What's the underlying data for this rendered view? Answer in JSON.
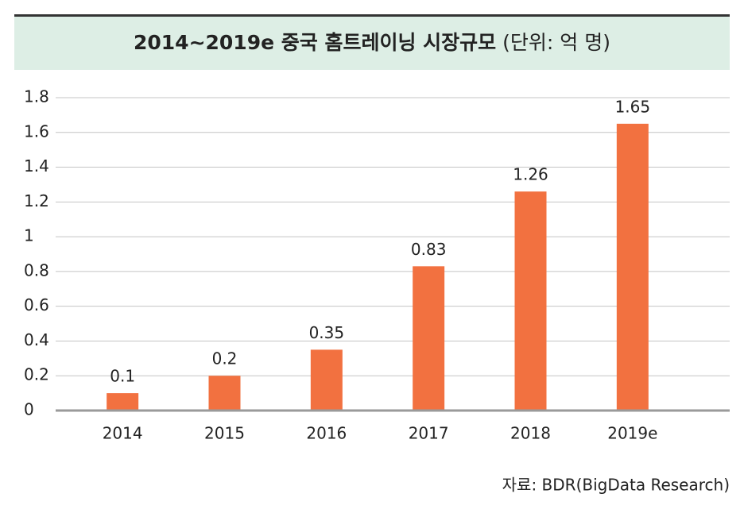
{
  "chart_data": {
    "type": "bar",
    "title": "2014~2019e 중국 홈트레이닝 시장규모",
    "subtitle": "(단위: 억 명)",
    "categories": [
      "2014",
      "2015",
      "2016",
      "2017",
      "2018",
      "2019e"
    ],
    "values": [
      0.1,
      0.2,
      0.35,
      0.83,
      1.26,
      1.65
    ],
    "color": "#f27140",
    "ylim": [
      0,
      1.8
    ],
    "yticks": [
      0,
      0.2,
      0.4,
      0.6,
      0.8,
      1,
      1.2,
      1.4,
      1.6,
      1.8
    ],
    "grid": true,
    "source": "자료: BDR(BigData Research)"
  }
}
